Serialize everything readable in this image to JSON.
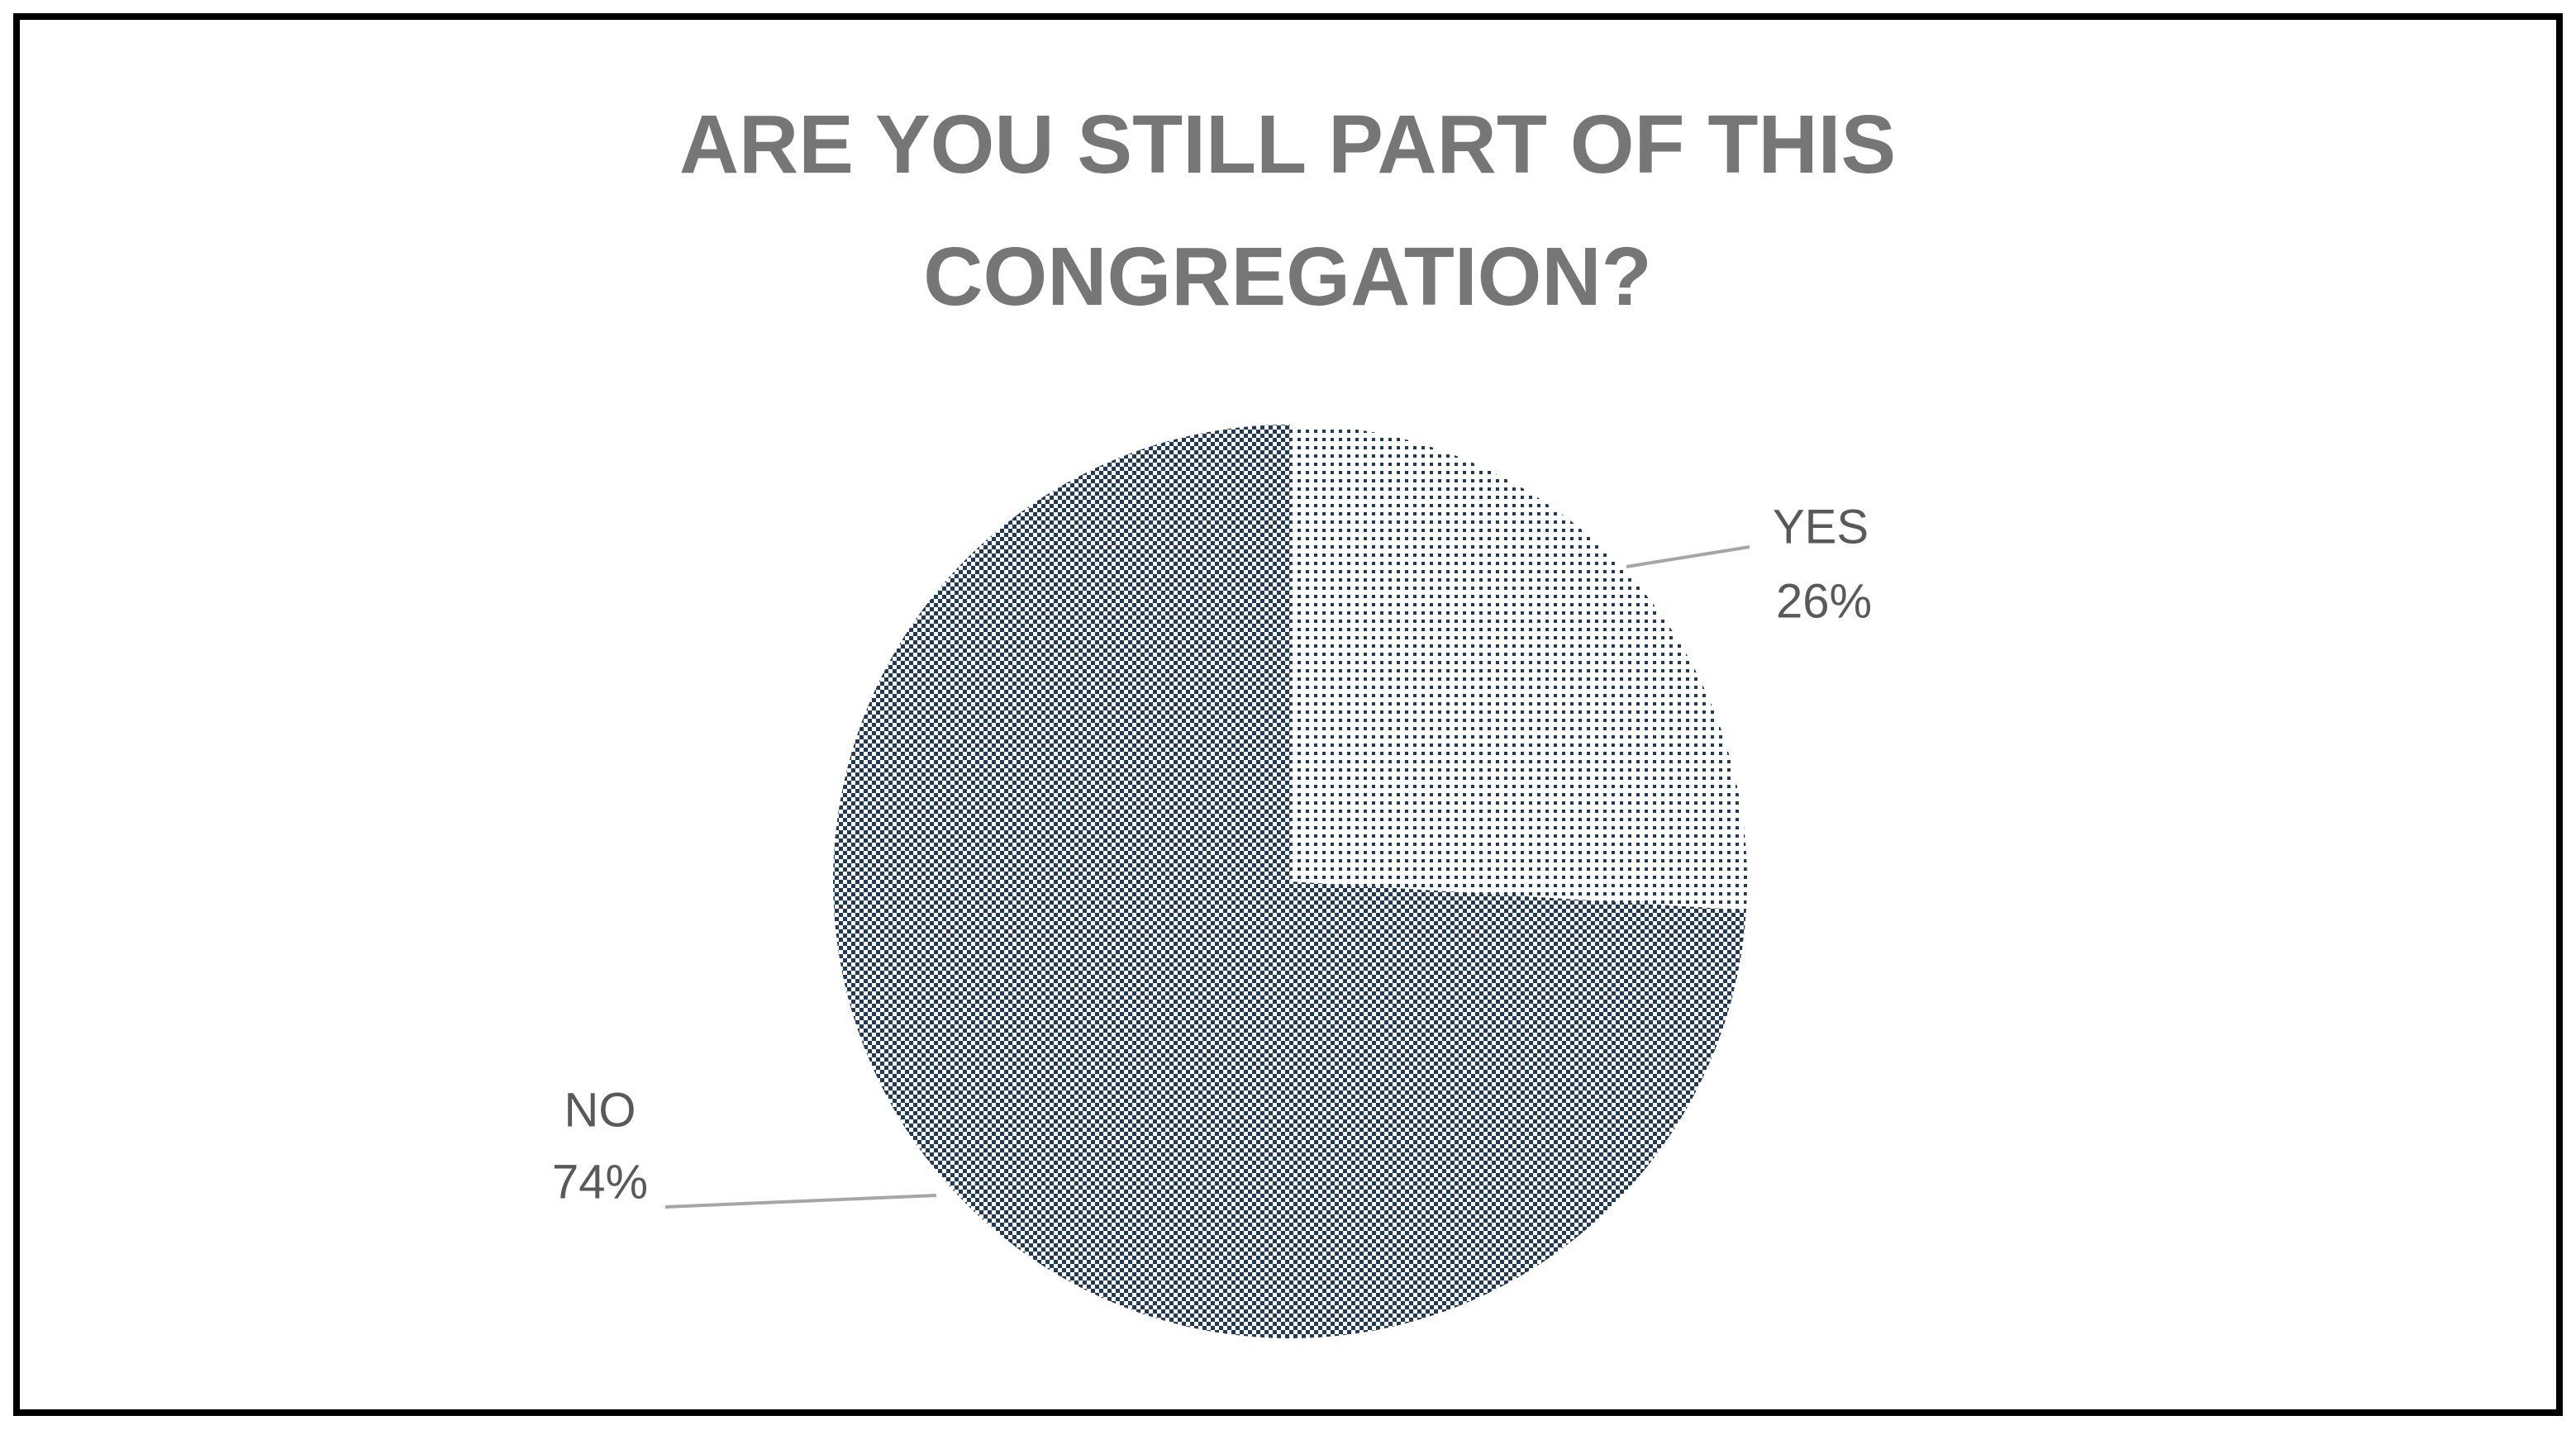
{
  "chart_data": {
    "type": "pie",
    "title": "ARE YOU STILL PART OF THIS CONGREGATION?",
    "categories": [
      "YES",
      "NO"
    ],
    "values": [
      26,
      74
    ],
    "value_labels": [
      "26%",
      "74%"
    ],
    "colors": [
      "#1f3a5a",
      "#1f3a5a"
    ]
  }
}
